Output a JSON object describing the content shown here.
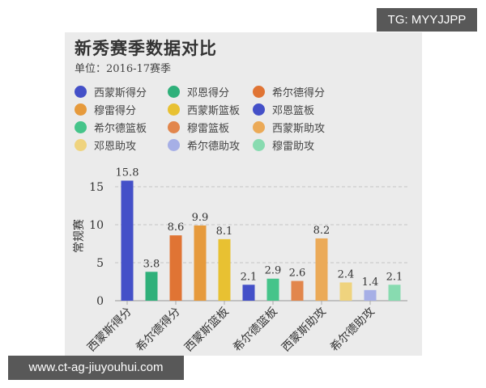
{
  "chart_data": {
    "type": "bar",
    "title": "新秀赛季数据对比",
    "subtitle": "单位：2016-17赛季",
    "ylabel": "常规赛",
    "xlabel": "",
    "ylim": [
      0,
      17
    ],
    "yticks": [
      0,
      5,
      10,
      15
    ],
    "grid": "horizontal dashed",
    "legend_position": "top",
    "categories": [
      "西蒙斯得分",
      "邓恩得分",
      "希尔德得分",
      "穆雷得分",
      "西蒙斯篮板",
      "邓恩篮板",
      "希尔德篮板",
      "穆雷篮板",
      "西蒙斯助攻",
      "邓恩助攻",
      "希尔德助攻",
      "穆雷助攻"
    ],
    "visible_xtick_labels": [
      "西蒙斯得分",
      "希尔德得分",
      "西蒙斯篮板",
      "希尔德篮板",
      "西蒙斯助攻",
      "希尔德助攻"
    ],
    "values": [
      15.8,
      3.8,
      8.6,
      9.9,
      8.1,
      2.1,
      2.9,
      2.6,
      8.2,
      2.4,
      1.4,
      2.1
    ],
    "colors": [
      "#4450c8",
      "#2fb07a",
      "#e07434",
      "#e69a3c",
      "#e8c132",
      "#4450c8",
      "#45c48a",
      "#e2864c",
      "#ebaa58",
      "#efd37e",
      "#a6afe6",
      "#88dbb0"
    ]
  },
  "legend": [
    {
      "label": "西蒙斯得分",
      "color": "#4450c8"
    },
    {
      "label": "邓恩得分",
      "color": "#2fb07a"
    },
    {
      "label": "希尔德得分",
      "color": "#e07434"
    },
    {
      "label": "穆雷得分",
      "color": "#e69a3c"
    },
    {
      "label": "西蒙斯篮板",
      "color": "#e8c132"
    },
    {
      "label": "邓恩篮板",
      "color": "#4450c8"
    },
    {
      "label": "希尔德篮板",
      "color": "#45c48a"
    },
    {
      "label": "穆雷篮板",
      "color": "#e2864c"
    },
    {
      "label": "西蒙斯助攻",
      "color": "#ebaa58"
    },
    {
      "label": "邓恩助攻",
      "color": "#efd37e"
    },
    {
      "label": "希尔德助攻",
      "color": "#a6afe6"
    },
    {
      "label": "穆雷助攻",
      "color": "#88dbb0"
    }
  ],
  "watermarks": {
    "tg": "TG: MYYJJPP",
    "url": "www.ct-ag-jiuyouhui.com"
  }
}
